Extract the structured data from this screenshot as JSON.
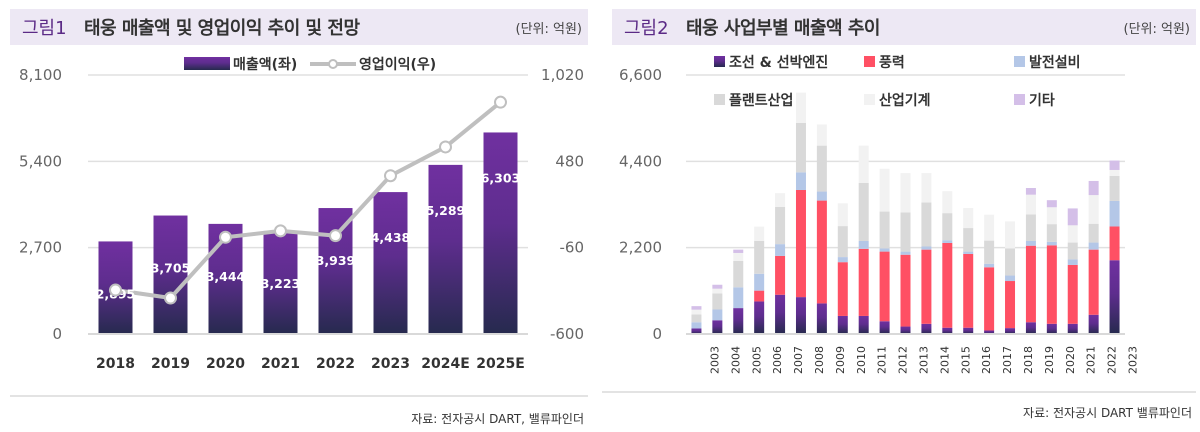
{
  "panel1": {
    "fig_label": "그림1",
    "title": "태웅 매출액 및 영업이익 추이 및 전망",
    "unit": "(단위: 억원)",
    "source": "자료: 전자공시 DART, 밸류파인더"
  },
  "panel2": {
    "fig_label": "그림2",
    "title": "태웅 사업부별 매출액 추이",
    "unit": "(단위: 억원)",
    "source": "자료: 전자공시 DART 밸류파인더"
  },
  "chart_data": [
    {
      "type": "bar+line",
      "categories": [
        "2018",
        "2019",
        "2020",
        "2021",
        "2022",
        "2023",
        "2024E",
        "2025E"
      ],
      "series": [
        {
          "name": "매출액(좌)",
          "type": "bar",
          "axis": "left",
          "values": [
            2895,
            3705,
            3444,
            3223,
            3939,
            4438,
            5289,
            6303
          ],
          "labels": [
            "2,895",
            "3,705",
            "3,444",
            "3,223",
            "3,939",
            "4,438",
            "5,289",
            "6,303"
          ],
          "color": "#7030a0"
        },
        {
          "name": "영업이익(우)",
          "type": "line",
          "axis": "right",
          "values": [
            -325,
            -375,
            5,
            45,
            15,
            390,
            570,
            850
          ],
          "color": "#bfbfbf"
        }
      ],
      "ylim_left": [
        0,
        8100
      ],
      "yticks_left": [
        "0",
        "2,700",
        "5,400",
        "8,100"
      ],
      "ylim_right": [
        -600,
        1020
      ],
      "yticks_right": [
        "-600",
        "-60",
        "480",
        "1,020"
      ],
      "legend": "top",
      "grid": true
    },
    {
      "type": "stacked-bar",
      "categories": [
        "2003",
        "2004",
        "2005",
        "2006",
        "2007",
        "2008",
        "2009",
        "2010",
        "2011",
        "2012",
        "2013",
        "2014",
        "2015",
        "2016",
        "2017",
        "2018",
        "2019",
        "2020",
        "2021",
        "2022",
        "2023"
      ],
      "series": [
        {
          "name": "조선 & 선박엔진",
          "color": "#6a2c9c",
          "values": [
            140,
            350,
            660,
            830,
            1000,
            940,
            780,
            460,
            460,
            325,
            190,
            260,
            160,
            160,
            90,
            150,
            300,
            260,
            260,
            490,
            1880
          ]
        },
        {
          "name": "풍력",
          "color": "#ff5064",
          "values": [
            0,
            0,
            0,
            275,
            990,
            2730,
            2620,
            1370,
            1710,
            1775,
            1830,
            1890,
            2160,
            1880,
            1610,
            1200,
            1950,
            2000,
            1500,
            1660,
            860
          ]
        },
        {
          "name": "발전설비",
          "color": "#b4c7e7",
          "values": [
            160,
            275,
            530,
            430,
            300,
            450,
            230,
            130,
            200,
            80,
            80,
            80,
            70,
            60,
            90,
            140,
            120,
            90,
            140,
            180,
            650
          ]
        },
        {
          "name": "플랜트산업",
          "color": "#d9d9d9",
          "values": [
            200,
            410,
            670,
            840,
            950,
            1260,
            1170,
            790,
            1480,
            940,
            1000,
            1120,
            690,
            600,
            590,
            690,
            680,
            450,
            430,
            480,
            640
          ]
        },
        {
          "name": "산업기계",
          "color": "#f2f2f2",
          "values": [
            120,
            120,
            205,
            360,
            350,
            770,
            540,
            580,
            950,
            1090,
            1000,
            750,
            560,
            510,
            660,
            690,
            500,
            430,
            440,
            730,
            150
          ]
        },
        {
          "name": "기타",
          "color": "#d4bfe8",
          "values": [
            90,
            100,
            85,
            0,
            0,
            0,
            0,
            0,
            0,
            0,
            0,
            0,
            0,
            0,
            0,
            0,
            170,
            180,
            430,
            360,
            240
          ]
        }
      ],
      "ylim": [
        0,
        6600
      ],
      "yticks": [
        "0",
        "2,200",
        "4,400",
        "6,600"
      ],
      "legend": "top",
      "grid": true
    }
  ]
}
